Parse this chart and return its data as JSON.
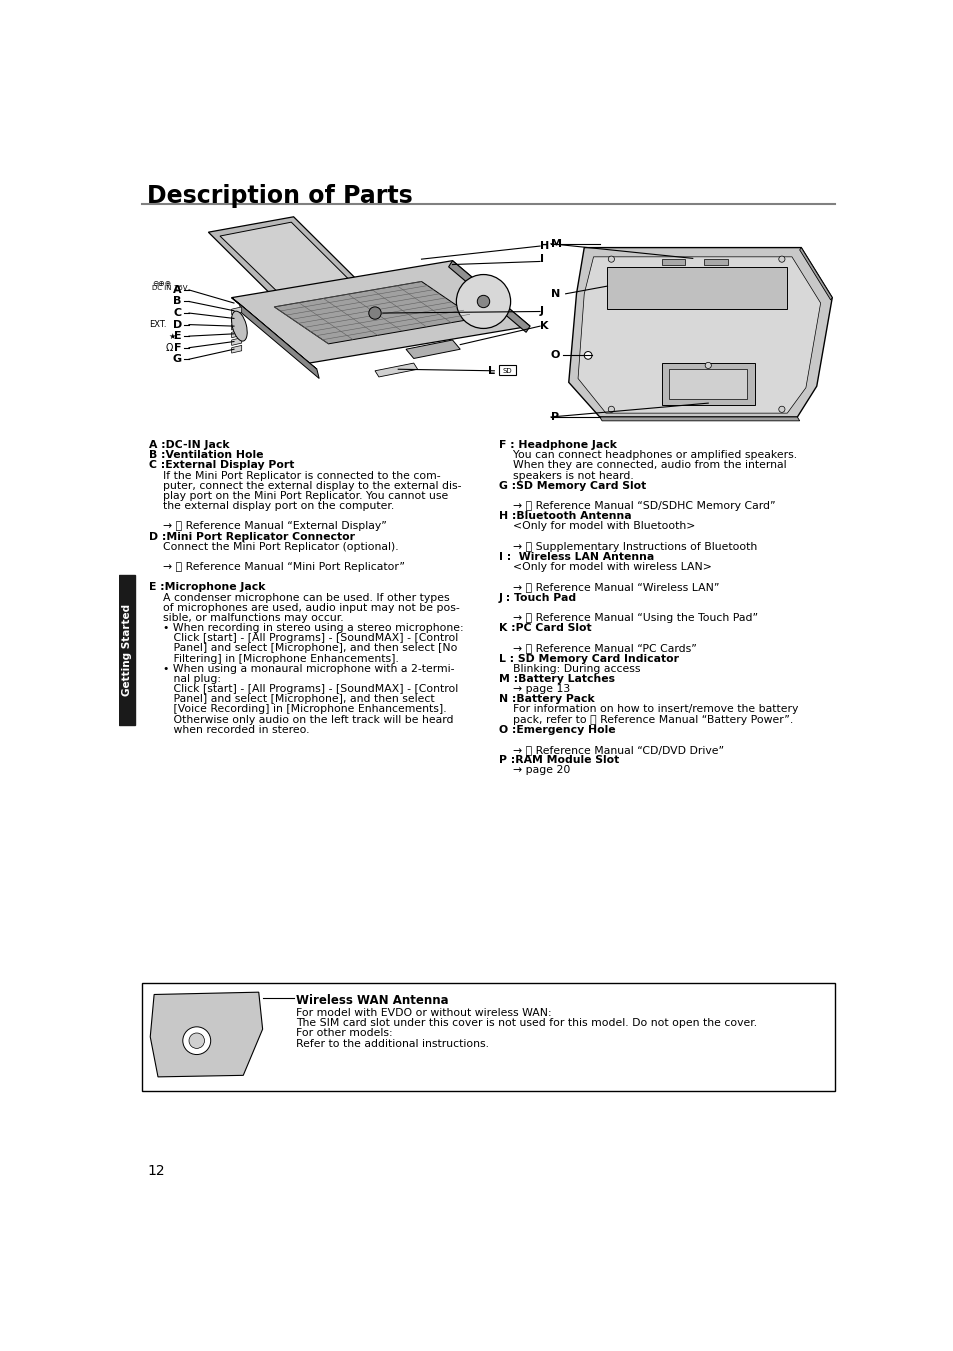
{
  "title": "Description of Parts",
  "bg_color": "#ffffff",
  "page_number": "12",
  "sidebar_color": "#1a1a1a",
  "sidebar_text": "Getting Started",
  "title_sep_color": "#808080",
  "diagram_gray": "#c8c8c8",
  "diagram_dark": "#888888",
  "diagram_light": "#e8e8e8",
  "left_items": [
    [
      true,
      "A :DC-IN Jack"
    ],
    [
      true,
      "B :Ventilation Hole"
    ],
    [
      true,
      "C :External Display Port"
    ],
    [
      false,
      "    If the Mini Port Replicator is connected to the com-"
    ],
    [
      false,
      "    puter, connect the external display to the external dis-"
    ],
    [
      false,
      "    play port on the Mini Port Replicator. You cannot use"
    ],
    [
      false,
      "    the external display port on the computer."
    ],
    [
      false,
      ""
    ],
    [
      false,
      "    →  Reference Manual “External Display”"
    ],
    [
      true,
      "D :Mini Port Replicator Connector"
    ],
    [
      false,
      "    Connect the Mini Port Replicator (optional)."
    ],
    [
      false,
      ""
    ],
    [
      false,
      "    →  Reference Manual “Mini Port Replicator”"
    ],
    [
      false,
      ""
    ],
    [
      true,
      "E :Microphone Jack"
    ],
    [
      false,
      "    A condenser microphone can be used. If other types"
    ],
    [
      false,
      "    of microphones are used, audio input may not be pos-"
    ],
    [
      false,
      "    sible, or malfunctions may occur."
    ],
    [
      false,
      "    • When recording in stereo using a stereo microphone:"
    ],
    [
      false,
      "       Click [start] - [All Programs] - [SoundMAX] - [Control"
    ],
    [
      false,
      "       Panel] and select [Microphone], and then select [No"
    ],
    [
      false,
      "       Filtering] in [Microphone Enhancements]."
    ],
    [
      false,
      "    • When using a monaural microphone with a 2-termi-"
    ],
    [
      false,
      "       nal plug:"
    ],
    [
      false,
      "       Click [start] - [All Programs] - [SoundMAX] - [Control"
    ],
    [
      false,
      "       Panel] and select [Microphone], and then select"
    ],
    [
      false,
      "       [Voice Recording] in [Microphone Enhancements]."
    ],
    [
      false,
      "       Otherwise only audio on the left track will be heard"
    ],
    [
      false,
      "       when recorded in stereo."
    ]
  ],
  "right_items": [
    [
      true,
      "F : Headphone Jack"
    ],
    [
      false,
      "    You can connect headphones or amplified speakers."
    ],
    [
      false,
      "    When they are connected, audio from the internal"
    ],
    [
      false,
      "    speakers is not heard."
    ],
    [
      true,
      "G :SD Memory Card Slot"
    ],
    [
      false,
      ""
    ],
    [
      false,
      "    →  Reference Manual “SD/SDHC Memory Card”"
    ],
    [
      true,
      "H :Bluetooth Antenna"
    ],
    [
      false,
      "    <Only for model with Bluetooth>"
    ],
    [
      false,
      ""
    ],
    [
      false,
      "    →  Supplementary Instructions of Bluetooth"
    ],
    [
      true,
      "I :  Wireless LAN Antenna"
    ],
    [
      false,
      "    <Only for model with wireless LAN>"
    ],
    [
      false,
      ""
    ],
    [
      false,
      "    →  Reference Manual “Wireless LAN”"
    ],
    [
      true,
      "J : Touch Pad"
    ],
    [
      false,
      ""
    ],
    [
      false,
      "    →  Reference Manual “Using the Touch Pad”"
    ],
    [
      true,
      "K :PC Card Slot"
    ],
    [
      false,
      ""
    ],
    [
      false,
      "    →  Reference Manual “PC Cards”"
    ],
    [
      true,
      "L : SD Memory Card Indicator"
    ],
    [
      false,
      "    Blinking: During access"
    ],
    [
      true,
      "M :Battery Latches"
    ],
    [
      false,
      "    → page 13"
    ],
    [
      true,
      "N :Battery Pack"
    ],
    [
      false,
      "    For information on how to insert/remove the battery"
    ],
    [
      false,
      "    pack, refer to  Reference Manual “Battery Power”."
    ],
    [
      true,
      "O :Emergency Hole"
    ],
    [
      false,
      ""
    ],
    [
      false,
      "    →  Reference Manual “CD/DVD Drive”"
    ],
    [
      true,
      "P :RAM Module Slot"
    ],
    [
      false,
      "    → page 20"
    ]
  ],
  "bottom_title": "Wireless WAN Antenna",
  "bottom_lines": [
    "For model with EVDO or without wireless WAN:",
    "The SIM card slot under this cover is not used for this model. Do not open the cover.",
    "For other models:",
    "Refer to the additional instructions."
  ]
}
